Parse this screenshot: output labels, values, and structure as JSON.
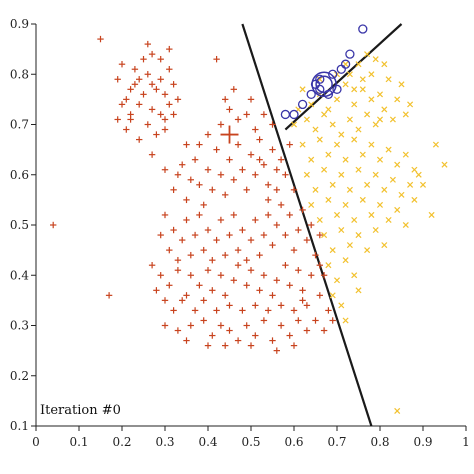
{
  "chart_data": {
    "type": "scatter",
    "title": "",
    "xlabel": "",
    "ylabel": "",
    "xlim": [
      0,
      1
    ],
    "ylim": [
      0.1,
      0.9
    ],
    "grid": false,
    "legend": "none",
    "x_ticks": [
      "0",
      "0.1",
      "0.2",
      "0.3",
      "0.4",
      "0.5",
      "0.6",
      "0.7",
      "0.8",
      "0.9",
      "1"
    ],
    "y_ticks": [
      "0.1",
      "0.2",
      "0.3",
      "0.4",
      "0.5",
      "0.6",
      "0.7",
      "0.8",
      "0.9"
    ],
    "annotation": "Iteration #0",
    "colors": {
      "red": "#c8431e",
      "yellow": "#f2c12e",
      "blue": "#3a36a8",
      "boundary": "#1a1a1a",
      "axis": "#222222"
    },
    "red_centroid": {
      "x": 0.45,
      "y": 0.68
    },
    "blue_centroid": {
      "x": 0.67,
      "y": 0.78
    },
    "red_points": [
      [
        0.04,
        0.5
      ],
      [
        0.15,
        0.87
      ],
      [
        0.17,
        0.36
      ],
      [
        0.19,
        0.79
      ],
      [
        0.2,
        0.82
      ],
      [
        0.22,
        0.77
      ],
      [
        0.23,
        0.78
      ],
      [
        0.24,
        0.74
      ],
      [
        0.22,
        0.71
      ],
      [
        0.25,
        0.76
      ],
      [
        0.26,
        0.8
      ],
      [
        0.27,
        0.73
      ],
      [
        0.28,
        0.77
      ],
      [
        0.29,
        0.79
      ],
      [
        0.3,
        0.76
      ],
      [
        0.31,
        0.74
      ],
      [
        0.3,
        0.71
      ],
      [
        0.28,
        0.68
      ],
      [
        0.26,
        0.7
      ],
      [
        0.24,
        0.67
      ],
      [
        0.22,
        0.72
      ],
      [
        0.21,
        0.75
      ],
      [
        0.23,
        0.81
      ],
      [
        0.25,
        0.83
      ],
      [
        0.27,
        0.84
      ],
      [
        0.29,
        0.83
      ],
      [
        0.31,
        0.81
      ],
      [
        0.32,
        0.78
      ],
      [
        0.33,
        0.75
      ],
      [
        0.32,
        0.72
      ],
      [
        0.3,
        0.69
      ],
      [
        0.31,
        0.85
      ],
      [
        0.26,
        0.86
      ],
      [
        0.21,
        0.69
      ],
      [
        0.2,
        0.74
      ],
      [
        0.27,
        0.78
      ],
      [
        0.29,
        0.72
      ],
      [
        0.24,
        0.79
      ],
      [
        0.19,
        0.71
      ],
      [
        0.42,
        0.83
      ],
      [
        0.27,
        0.64
      ],
      [
        0.3,
        0.61
      ],
      [
        0.32,
        0.57
      ],
      [
        0.34,
        0.62
      ],
      [
        0.36,
        0.59
      ],
      [
        0.35,
        0.55
      ],
      [
        0.37,
        0.63
      ],
      [
        0.38,
        0.58
      ],
      [
        0.39,
        0.54
      ],
      [
        0.4,
        0.61
      ],
      [
        0.41,
        0.57
      ],
      [
        0.42,
        0.65
      ],
      [
        0.43,
        0.6
      ],
      [
        0.44,
        0.56
      ],
      [
        0.45,
        0.63
      ],
      [
        0.46,
        0.59
      ],
      [
        0.47,
        0.66
      ],
      [
        0.48,
        0.61
      ],
      [
        0.49,
        0.57
      ],
      [
        0.5,
        0.64
      ],
      [
        0.51,
        0.6
      ],
      [
        0.52,
        0.67
      ],
      [
        0.53,
        0.62
      ],
      [
        0.54,
        0.58
      ],
      [
        0.55,
        0.65
      ],
      [
        0.56,
        0.61
      ],
      [
        0.43,
        0.7
      ],
      [
        0.45,
        0.73
      ],
      [
        0.47,
        0.71
      ],
      [
        0.49,
        0.72
      ],
      [
        0.51,
        0.69
      ],
      [
        0.53,
        0.72
      ],
      [
        0.55,
        0.7
      ],
      [
        0.44,
        0.75
      ],
      [
        0.4,
        0.68
      ],
      [
        0.38,
        0.66
      ],
      [
        0.46,
        0.77
      ],
      [
        0.5,
        0.75
      ],
      [
        0.52,
        0.63
      ],
      [
        0.35,
        0.66
      ],
      [
        0.33,
        0.6
      ],
      [
        0.29,
        0.48
      ],
      [
        0.3,
        0.52
      ],
      [
        0.31,
        0.45
      ],
      [
        0.32,
        0.49
      ],
      [
        0.33,
        0.43
      ],
      [
        0.34,
        0.47
      ],
      [
        0.35,
        0.51
      ],
      [
        0.36,
        0.44
      ],
      [
        0.37,
        0.48
      ],
      [
        0.38,
        0.52
      ],
      [
        0.39,
        0.45
      ],
      [
        0.4,
        0.49
      ],
      [
        0.41,
        0.43
      ],
      [
        0.42,
        0.47
      ],
      [
        0.43,
        0.51
      ],
      [
        0.44,
        0.44
      ],
      [
        0.45,
        0.48
      ],
      [
        0.46,
        0.52
      ],
      [
        0.47,
        0.45
      ],
      [
        0.48,
        0.49
      ],
      [
        0.49,
        0.43
      ],
      [
        0.5,
        0.47
      ],
      [
        0.51,
        0.51
      ],
      [
        0.52,
        0.44
      ],
      [
        0.53,
        0.48
      ],
      [
        0.54,
        0.52
      ],
      [
        0.55,
        0.46
      ],
      [
        0.56,
        0.5
      ],
      [
        0.57,
        0.54
      ],
      [
        0.58,
        0.48
      ],
      [
        0.59,
        0.52
      ],
      [
        0.6,
        0.45
      ],
      [
        0.61,
        0.49
      ],
      [
        0.62,
        0.53
      ],
      [
        0.63,
        0.47
      ],
      [
        0.64,
        0.5
      ],
      [
        0.56,
        0.57
      ],
      [
        0.58,
        0.6
      ],
      [
        0.6,
        0.57
      ],
      [
        0.57,
        0.63
      ],
      [
        0.59,
        0.66
      ],
      [
        0.54,
        0.55
      ],
      [
        0.29,
        0.4
      ],
      [
        0.31,
        0.38
      ],
      [
        0.33,
        0.41
      ],
      [
        0.35,
        0.36
      ],
      [
        0.36,
        0.4
      ],
      [
        0.38,
        0.38
      ],
      [
        0.4,
        0.41
      ],
      [
        0.41,
        0.37
      ],
      [
        0.43,
        0.4
      ],
      [
        0.44,
        0.36
      ],
      [
        0.46,
        0.39
      ],
      [
        0.47,
        0.42
      ],
      [
        0.49,
        0.38
      ],
      [
        0.5,
        0.41
      ],
      [
        0.52,
        0.37
      ],
      [
        0.53,
        0.4
      ],
      [
        0.55,
        0.36
      ],
      [
        0.56,
        0.39
      ],
      [
        0.58,
        0.42
      ],
      [
        0.59,
        0.38
      ],
      [
        0.61,
        0.41
      ],
      [
        0.62,
        0.37
      ],
      [
        0.64,
        0.4
      ],
      [
        0.3,
        0.35
      ],
      [
        0.32,
        0.33
      ],
      [
        0.34,
        0.35
      ],
      [
        0.37,
        0.33
      ],
      [
        0.39,
        0.35
      ],
      [
        0.42,
        0.33
      ],
      [
        0.45,
        0.34
      ],
      [
        0.48,
        0.33
      ],
      [
        0.51,
        0.34
      ],
      [
        0.54,
        0.33
      ],
      [
        0.57,
        0.34
      ],
      [
        0.6,
        0.33
      ],
      [
        0.63,
        0.34
      ],
      [
        0.66,
        0.36
      ],
      [
        0.66,
        0.42
      ],
      [
        0.67,
        0.4
      ],
      [
        0.65,
        0.44
      ],
      [
        0.3,
        0.3
      ],
      [
        0.33,
        0.29
      ],
      [
        0.36,
        0.3
      ],
      [
        0.39,
        0.31
      ],
      [
        0.41,
        0.28
      ],
      [
        0.43,
        0.3
      ],
      [
        0.45,
        0.29
      ],
      [
        0.47,
        0.27
      ],
      [
        0.49,
        0.3
      ],
      [
        0.51,
        0.28
      ],
      [
        0.53,
        0.31
      ],
      [
        0.55,
        0.27
      ],
      [
        0.57,
        0.3
      ],
      [
        0.59,
        0.28
      ],
      [
        0.61,
        0.31
      ],
      [
        0.63,
        0.29
      ],
      [
        0.65,
        0.31
      ],
      [
        0.67,
        0.29
      ],
      [
        0.69,
        0.31
      ],
      [
        0.35,
        0.27
      ],
      [
        0.4,
        0.26
      ],
      [
        0.5,
        0.26
      ],
      [
        0.56,
        0.25
      ],
      [
        0.6,
        0.26
      ],
      [
        0.44,
        0.26
      ],
      [
        0.68,
        0.33
      ],
      [
        0.62,
        0.35
      ],
      [
        0.27,
        0.42
      ],
      [
        0.28,
        0.37
      ],
      [
        0.66,
        0.48
      ]
    ],
    "yellow_points": [
      [
        0.62,
        0.77
      ],
      [
        0.64,
        0.74
      ],
      [
        0.66,
        0.76
      ],
      [
        0.68,
        0.73
      ],
      [
        0.7,
        0.75
      ],
      [
        0.72,
        0.78
      ],
      [
        0.74,
        0.74
      ],
      [
        0.76,
        0.77
      ],
      [
        0.78,
        0.8
      ],
      [
        0.8,
        0.76
      ],
      [
        0.82,
        0.79
      ],
      [
        0.84,
        0.75
      ],
      [
        0.86,
        0.72
      ],
      [
        0.83,
        0.71
      ],
      [
        0.81,
        0.73
      ],
      [
        0.79,
        0.7
      ],
      [
        0.77,
        0.72
      ],
      [
        0.75,
        0.69
      ],
      [
        0.73,
        0.71
      ],
      [
        0.71,
        0.68
      ],
      [
        0.69,
        0.7
      ],
      [
        0.67,
        0.72
      ],
      [
        0.65,
        0.69
      ],
      [
        0.63,
        0.71
      ],
      [
        0.61,
        0.73
      ],
      [
        0.6,
        0.7
      ],
      [
        0.73,
        0.8
      ],
      [
        0.75,
        0.82
      ],
      [
        0.77,
        0.84
      ],
      [
        0.79,
        0.83
      ],
      [
        0.81,
        0.82
      ],
      [
        0.85,
        0.78
      ],
      [
        0.87,
        0.74
      ],
      [
        0.76,
        0.79
      ],
      [
        0.74,
        0.77
      ],
      [
        0.78,
        0.75
      ],
      [
        0.8,
        0.71
      ],
      [
        0.7,
        0.8
      ],
      [
        0.72,
        0.82
      ],
      [
        0.66,
        0.79
      ],
      [
        0.62,
        0.66
      ],
      [
        0.64,
        0.63
      ],
      [
        0.66,
        0.67
      ],
      [
        0.68,
        0.64
      ],
      [
        0.7,
        0.66
      ],
      [
        0.72,
        0.63
      ],
      [
        0.74,
        0.67
      ],
      [
        0.76,
        0.64
      ],
      [
        0.78,
        0.66
      ],
      [
        0.8,
        0.63
      ],
      [
        0.82,
        0.65
      ],
      [
        0.84,
        0.62
      ],
      [
        0.86,
        0.64
      ],
      [
        0.88,
        0.61
      ],
      [
        0.63,
        0.6
      ],
      [
        0.65,
        0.57
      ],
      [
        0.67,
        0.61
      ],
      [
        0.69,
        0.58
      ],
      [
        0.71,
        0.6
      ],
      [
        0.73,
        0.57
      ],
      [
        0.75,
        0.61
      ],
      [
        0.77,
        0.58
      ],
      [
        0.79,
        0.6
      ],
      [
        0.81,
        0.57
      ],
      [
        0.83,
        0.59
      ],
      [
        0.85,
        0.56
      ],
      [
        0.87,
        0.58
      ],
      [
        0.89,
        0.6
      ],
      [
        0.9,
        0.58
      ],
      [
        0.88,
        0.55
      ],
      [
        0.64,
        0.54
      ],
      [
        0.66,
        0.51
      ],
      [
        0.68,
        0.55
      ],
      [
        0.7,
        0.52
      ],
      [
        0.72,
        0.54
      ],
      [
        0.74,
        0.51
      ],
      [
        0.76,
        0.55
      ],
      [
        0.78,
        0.52
      ],
      [
        0.8,
        0.54
      ],
      [
        0.82,
        0.51
      ],
      [
        0.84,
        0.53
      ],
      [
        0.86,
        0.5
      ],
      [
        0.67,
        0.48
      ],
      [
        0.69,
        0.45
      ],
      [
        0.71,
        0.49
      ],
      [
        0.73,
        0.46
      ],
      [
        0.75,
        0.48
      ],
      [
        0.77,
        0.45
      ],
      [
        0.79,
        0.49
      ],
      [
        0.81,
        0.46
      ],
      [
        0.68,
        0.42
      ],
      [
        0.7,
        0.39
      ],
      [
        0.72,
        0.43
      ],
      [
        0.74,
        0.4
      ],
      [
        0.69,
        0.36
      ],
      [
        0.71,
        0.34
      ],
      [
        0.72,
        0.31
      ],
      [
        0.75,
        0.37
      ],
      [
        0.92,
        0.52
      ],
      [
        0.84,
        0.13
      ],
      [
        0.93,
        0.66
      ],
      [
        0.95,
        0.62
      ]
    ],
    "blue_points": [
      [
        0.58,
        0.72
      ],
      [
        0.6,
        0.72
      ],
      [
        0.62,
        0.74
      ],
      [
        0.64,
        0.76
      ],
      [
        0.65,
        0.78
      ],
      [
        0.66,
        0.79
      ],
      [
        0.68,
        0.76
      ],
      [
        0.69,
        0.8
      ],
      [
        0.7,
        0.77
      ],
      [
        0.71,
        0.81
      ],
      [
        0.72,
        0.82
      ],
      [
        0.73,
        0.84
      ],
      [
        0.76,
        0.89
      ],
      [
        0.66,
        0.77
      ]
    ],
    "boundary_lines": [
      {
        "points": [
          [
            0.48,
            0.9
          ],
          [
            0.78,
            0.1
          ]
        ]
      },
      {
        "points": [
          [
            0.58,
            0.69
          ],
          [
            0.85,
            0.9
          ]
        ]
      }
    ]
  }
}
